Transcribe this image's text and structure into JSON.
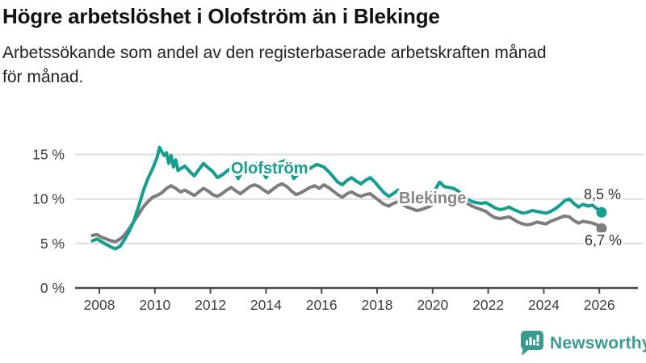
{
  "header": {
    "title": "Högre arbetslöshet i Olofström än i Blekinge",
    "subtitle": "Arbetssökande som andel av den registerbaserade arbetskraften månad\nför månad."
  },
  "chart_data": {
    "type": "line",
    "title": "Högre arbetslöshet i Olofström än i Blekinge",
    "subtitle": "Arbetssökande som andel av den registerbaserade arbetskraften månad för månad.",
    "unit": "%",
    "grid": "horizontal-only",
    "legend_position": "inline-labels-on-lines",
    "x_axis": {
      "ticks": [
        2008,
        2010,
        2012,
        2014,
        2016,
        2018,
        2020,
        2022,
        2024,
        2026
      ],
      "range": [
        2007.6,
        2026.4
      ]
    },
    "y_axis": {
      "ticks": [
        0,
        5,
        10,
        15
      ],
      "tick_labels": [
        "0 %",
        "5 %",
        "10 %",
        "15 %"
      ],
      "range": [
        0,
        16
      ],
      "gridlines": [
        5,
        10,
        15
      ]
    },
    "series": [
      {
        "name": "Blekinge",
        "color": "#7d7d7d",
        "end_label": "6,7 %",
        "last_value": 6.7,
        "points": [
          [
            2007.75,
            5.9
          ],
          [
            2007.92,
            6.0
          ],
          [
            2008.08,
            5.7
          ],
          [
            2008.25,
            5.5
          ],
          [
            2008.42,
            5.3
          ],
          [
            2008.58,
            5.2
          ],
          [
            2008.75,
            5.5
          ],
          [
            2008.92,
            6.0
          ],
          [
            2009.08,
            6.7
          ],
          [
            2009.25,
            7.5
          ],
          [
            2009.42,
            8.3
          ],
          [
            2009.58,
            9.1
          ],
          [
            2009.75,
            9.7
          ],
          [
            2009.92,
            10.2
          ],
          [
            2010.08,
            10.4
          ],
          [
            2010.25,
            10.7
          ],
          [
            2010.42,
            11.2
          ],
          [
            2010.58,
            11.5
          ],
          [
            2010.75,
            11.2
          ],
          [
            2010.92,
            10.8
          ],
          [
            2011.08,
            11.0
          ],
          [
            2011.25,
            10.7
          ],
          [
            2011.42,
            10.4
          ],
          [
            2011.58,
            10.8
          ],
          [
            2011.75,
            11.2
          ],
          [
            2011.92,
            10.9
          ],
          [
            2012.08,
            10.5
          ],
          [
            2012.25,
            10.3
          ],
          [
            2012.42,
            10.6
          ],
          [
            2012.58,
            11.0
          ],
          [
            2012.75,
            11.3
          ],
          [
            2012.92,
            10.9
          ],
          [
            2013.08,
            10.6
          ],
          [
            2013.25,
            11.0
          ],
          [
            2013.42,
            11.4
          ],
          [
            2013.58,
            11.6
          ],
          [
            2013.75,
            11.4
          ],
          [
            2013.92,
            11.0
          ],
          [
            2014.08,
            10.7
          ],
          [
            2014.25,
            11.1
          ],
          [
            2014.42,
            11.5
          ],
          [
            2014.58,
            11.7
          ],
          [
            2014.75,
            11.4
          ],
          [
            2014.92,
            10.9
          ],
          [
            2015.08,
            10.5
          ],
          [
            2015.25,
            10.7
          ],
          [
            2015.42,
            11.0
          ],
          [
            2015.58,
            11.3
          ],
          [
            2015.75,
            11.5
          ],
          [
            2015.92,
            11.2
          ],
          [
            2016.08,
            11.6
          ],
          [
            2016.25,
            11.3
          ],
          [
            2016.42,
            10.9
          ],
          [
            2016.58,
            10.5
          ],
          [
            2016.75,
            10.2
          ],
          [
            2016.92,
            10.6
          ],
          [
            2017.08,
            10.8
          ],
          [
            2017.25,
            10.5
          ],
          [
            2017.42,
            10.3
          ],
          [
            2017.58,
            10.5
          ],
          [
            2017.75,
            10.6
          ],
          [
            2017.92,
            10.2
          ],
          [
            2018.08,
            9.8
          ],
          [
            2018.25,
            9.4
          ],
          [
            2018.42,
            9.2
          ],
          [
            2018.58,
            9.5
          ],
          [
            2018.75,
            9.7
          ],
          [
            2018.92,
            9.4
          ],
          [
            2019.08,
            9.1
          ],
          [
            2019.25,
            8.9
          ],
          [
            2019.42,
            8.7
          ],
          [
            2019.58,
            8.8
          ],
          [
            2019.75,
            9.0
          ],
          [
            2019.92,
            9.2
          ],
          [
            2020.08,
            9.6
          ],
          [
            2020.25,
            10.2
          ],
          [
            2020.42,
            10.5
          ],
          [
            2020.58,
            10.4
          ],
          [
            2020.75,
            10.2
          ],
          [
            2020.92,
            10.0
          ],
          [
            2021.08,
            9.9
          ],
          [
            2021.25,
            9.5
          ],
          [
            2021.42,
            9.2
          ],
          [
            2021.58,
            9.0
          ],
          [
            2021.75,
            8.8
          ],
          [
            2021.92,
            8.6
          ],
          [
            2022.08,
            8.2
          ],
          [
            2022.25,
            7.9
          ],
          [
            2022.42,
            7.8
          ],
          [
            2022.58,
            7.9
          ],
          [
            2022.75,
            8.0
          ],
          [
            2022.92,
            7.7
          ],
          [
            2023.08,
            7.4
          ],
          [
            2023.25,
            7.2
          ],
          [
            2023.42,
            7.1
          ],
          [
            2023.58,
            7.2
          ],
          [
            2023.75,
            7.4
          ],
          [
            2023.92,
            7.3
          ],
          [
            2024.08,
            7.2
          ],
          [
            2024.25,
            7.5
          ],
          [
            2024.42,
            7.7
          ],
          [
            2024.58,
            7.9
          ],
          [
            2024.75,
            8.1
          ],
          [
            2024.92,
            8.0
          ],
          [
            2025.08,
            7.6
          ],
          [
            2025.25,
            7.3
          ],
          [
            2025.42,
            7.5
          ],
          [
            2025.58,
            7.4
          ],
          [
            2025.75,
            7.3
          ],
          [
            2025.92,
            7.1
          ],
          [
            2026.08,
            6.7
          ]
        ]
      },
      {
        "name": "Olofström",
        "color": "#149e8f",
        "end_label": "8,5 %",
        "last_value": 8.5,
        "points": [
          [
            2007.75,
            5.3
          ],
          [
            2007.92,
            5.5
          ],
          [
            2008.08,
            5.2
          ],
          [
            2008.25,
            4.9
          ],
          [
            2008.42,
            4.6
          ],
          [
            2008.58,
            4.4
          ],
          [
            2008.75,
            4.7
          ],
          [
            2008.92,
            5.5
          ],
          [
            2009.08,
            6.4
          ],
          [
            2009.25,
            7.6
          ],
          [
            2009.42,
            9.2
          ],
          [
            2009.58,
            10.9
          ],
          [
            2009.75,
            12.3
          ],
          [
            2009.92,
            13.4
          ],
          [
            2010.08,
            14.7
          ],
          [
            2010.17,
            15.8
          ],
          [
            2010.25,
            15.3
          ],
          [
            2010.33,
            14.9
          ],
          [
            2010.42,
            15.2
          ],
          [
            2010.5,
            14.0
          ],
          [
            2010.58,
            14.9
          ],
          [
            2010.67,
            13.6
          ],
          [
            2010.75,
            14.4
          ],
          [
            2010.83,
            13.2
          ],
          [
            2010.92,
            13.4
          ],
          [
            2011.08,
            13.7
          ],
          [
            2011.25,
            13.1
          ],
          [
            2011.42,
            12.6
          ],
          [
            2011.58,
            13.3
          ],
          [
            2011.75,
            14.0
          ],
          [
            2011.92,
            13.5
          ],
          [
            2012.08,
            13.1
          ],
          [
            2012.25,
            12.4
          ],
          [
            2012.42,
            12.7
          ],
          [
            2012.58,
            13.1
          ],
          [
            2012.75,
            13.5
          ],
          [
            2012.92,
            12.8
          ],
          [
            2013.0,
            12.3
          ],
          [
            2013.17,
            13.2
          ],
          [
            2013.33,
            13.9
          ],
          [
            2013.5,
            13.6
          ],
          [
            2013.67,
            14.0
          ],
          [
            2013.83,
            13.4
          ],
          [
            2014.0,
            12.4
          ],
          [
            2014.17,
            13.3
          ],
          [
            2014.33,
            13.8
          ],
          [
            2014.5,
            14.1
          ],
          [
            2014.67,
            14.3
          ],
          [
            2014.83,
            13.6
          ],
          [
            2015.0,
            12.3
          ],
          [
            2015.17,
            12.8
          ],
          [
            2015.33,
            13.1
          ],
          [
            2015.5,
            13.3
          ],
          [
            2015.67,
            13.6
          ],
          [
            2015.83,
            13.9
          ],
          [
            2016.08,
            13.6
          ],
          [
            2016.25,
            13.1
          ],
          [
            2016.42,
            12.5
          ],
          [
            2016.58,
            11.9
          ],
          [
            2016.75,
            11.6
          ],
          [
            2016.92,
            12.1
          ],
          [
            2017.08,
            12.4
          ],
          [
            2017.25,
            12.0
          ],
          [
            2017.42,
            11.7
          ],
          [
            2017.58,
            12.1
          ],
          [
            2017.75,
            12.4
          ],
          [
            2017.92,
            11.9
          ],
          [
            2018.08,
            11.3
          ],
          [
            2018.25,
            10.7
          ],
          [
            2018.42,
            10.3
          ],
          [
            2018.58,
            10.6
          ],
          [
            2018.75,
            11.0
          ],
          [
            2018.92,
            10.6
          ],
          [
            2019.08,
            10.3
          ],
          [
            2019.25,
            10.1
          ],
          [
            2019.42,
            10.4
          ],
          [
            2019.58,
            10.6
          ],
          [
            2019.75,
            10.4
          ],
          [
            2019.92,
            10.6
          ],
          [
            2020.08,
            11.0
          ],
          [
            2020.25,
            11.9
          ],
          [
            2020.42,
            11.4
          ],
          [
            2020.58,
            11.3
          ],
          [
            2020.75,
            11.2
          ],
          [
            2020.92,
            10.9
          ],
          [
            2021.08,
            10.4
          ],
          [
            2021.25,
            10.0
          ],
          [
            2021.42,
            9.7
          ],
          [
            2021.58,
            9.6
          ],
          [
            2021.75,
            9.5
          ],
          [
            2021.92,
            9.6
          ],
          [
            2022.08,
            9.3
          ],
          [
            2022.25,
            9.0
          ],
          [
            2022.42,
            8.8
          ],
          [
            2022.58,
            8.9
          ],
          [
            2022.75,
            9.1
          ],
          [
            2022.92,
            8.8
          ],
          [
            2023.08,
            8.6
          ],
          [
            2023.25,
            8.4
          ],
          [
            2023.42,
            8.5
          ],
          [
            2023.58,
            8.7
          ],
          [
            2023.75,
            8.6
          ],
          [
            2023.92,
            8.5
          ],
          [
            2024.08,
            8.4
          ],
          [
            2024.25,
            8.6
          ],
          [
            2024.42,
            8.9
          ],
          [
            2024.58,
            9.3
          ],
          [
            2024.75,
            9.8
          ],
          [
            2024.92,
            10.0
          ],
          [
            2025.08,
            9.5
          ],
          [
            2025.25,
            9.1
          ],
          [
            2025.42,
            9.4
          ],
          [
            2025.58,
            9.2
          ],
          [
            2025.75,
            9.3
          ],
          [
            2025.92,
            8.9
          ],
          [
            2026.08,
            8.5
          ]
        ]
      }
    ]
  },
  "branding": {
    "name": "Newsworthy",
    "color": "#399a90",
    "icon": "bar-chart-speech-bubble"
  }
}
